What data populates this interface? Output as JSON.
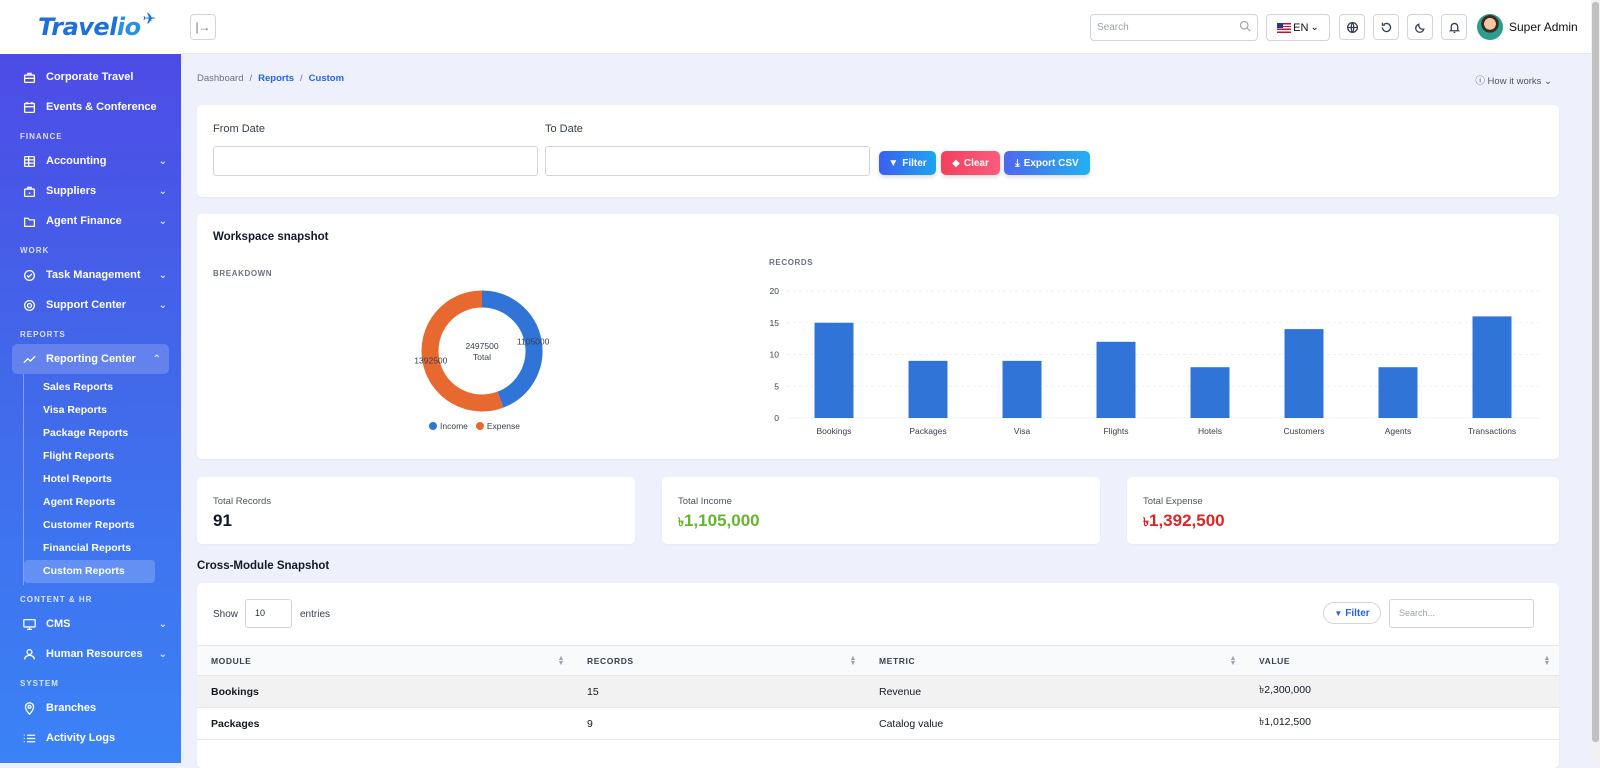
{
  "app": {
    "logo_main": "Travel",
    "logo_accent": "io"
  },
  "sidebar": {
    "top_items": [
      {
        "label": "Corporate Travel",
        "icon": "briefcase-icon"
      },
      {
        "label": "Events & Conference",
        "icon": "calendar-icon"
      }
    ],
    "sections": {
      "finance": "FINANCE",
      "work": "WORK",
      "reports": "REPORTS",
      "content_hr": "CONTENT & HR",
      "system": "SYSTEM"
    },
    "finance_items": [
      {
        "label": "Accounting",
        "icon": "ledger-icon"
      },
      {
        "label": "Suppliers",
        "icon": "briefcase-icon"
      },
      {
        "label": "Agent Finance",
        "icon": "folder-icon"
      }
    ],
    "work_items": [
      {
        "label": "Task Management",
        "icon": "check-circle-icon"
      },
      {
        "label": "Support Center",
        "icon": "lifebuoy-icon"
      }
    ],
    "reporting_center": "Reporting Center",
    "report_items": [
      "Sales Reports",
      "Visa Reports",
      "Package Reports",
      "Flight Reports",
      "Hotel Reports",
      "Agent Reports",
      "Customer Reports",
      "Financial Reports",
      "Custom Reports"
    ],
    "content_items": [
      {
        "label": "CMS",
        "icon": "monitor-icon"
      },
      {
        "label": "Human Resources",
        "icon": "users-icon"
      }
    ],
    "system_items": [
      {
        "label": "Branches",
        "icon": "pin-icon"
      },
      {
        "label": "Activity Logs",
        "icon": "list-icon"
      }
    ]
  },
  "header": {
    "search_placeholder": "Search",
    "language": "EN",
    "user_name": "Super Admin"
  },
  "breadcrumb": {
    "home": "Dashboard",
    "section": "Reports",
    "current": "Custom"
  },
  "how_it_works": "How it works",
  "filters": {
    "from_label": "From Date",
    "to_label": "To Date",
    "filter_btn": "Filter",
    "clear_btn": "Clear",
    "export_btn": "Export CSV"
  },
  "snapshot": {
    "title": "Workspace snapshot",
    "breakdown_label": "BREAKDOWN",
    "records_label": "RECORDS"
  },
  "chart_data": [
    {
      "type": "pie",
      "labels": [
        "Income",
        "Expense"
      ],
      "values": [
        1105000,
        1392500
      ],
      "center_value": "2497500",
      "center_label": "Total",
      "slice_labels": [
        "1105000",
        "1392500"
      ],
      "colors": [
        "#2f74d6",
        "#e8692f"
      ]
    },
    {
      "type": "bar",
      "categories": [
        "Bookings",
        "Packages",
        "Visa",
        "Flights",
        "Hotels",
        "Customers",
        "Agents",
        "Transactions"
      ],
      "values": [
        15,
        9,
        9,
        12,
        8,
        14,
        8,
        16
      ],
      "yticks": [
        0,
        5,
        10,
        15,
        20
      ],
      "ylim": [
        0,
        20
      ],
      "color": "#2f74d6"
    }
  ],
  "stats": [
    {
      "label": "Total Records",
      "value": "91",
      "color": "#111827"
    },
    {
      "label": "Total Income",
      "currency": "৳",
      "value": "1,105,000",
      "color": "#65b531"
    },
    {
      "label": "Total Expense",
      "currency": "৳",
      "value": "1,392,500",
      "color": "#dc2626"
    }
  ],
  "table": {
    "title": "Cross-Module Snapshot",
    "show": "Show",
    "entries_value": "10",
    "entries": "entries",
    "filter_btn": "Filter",
    "search_placeholder": "Search...",
    "columns": [
      "MODULE",
      "RECORDS",
      "METRIC",
      "VALUE"
    ],
    "rows": [
      {
        "module": "Bookings",
        "records": "15",
        "metric": "Revenue",
        "value": "৳2,300,000"
      },
      {
        "module": "Packages",
        "records": "9",
        "metric": "Catalog value",
        "value": "৳1,012,500"
      }
    ]
  }
}
